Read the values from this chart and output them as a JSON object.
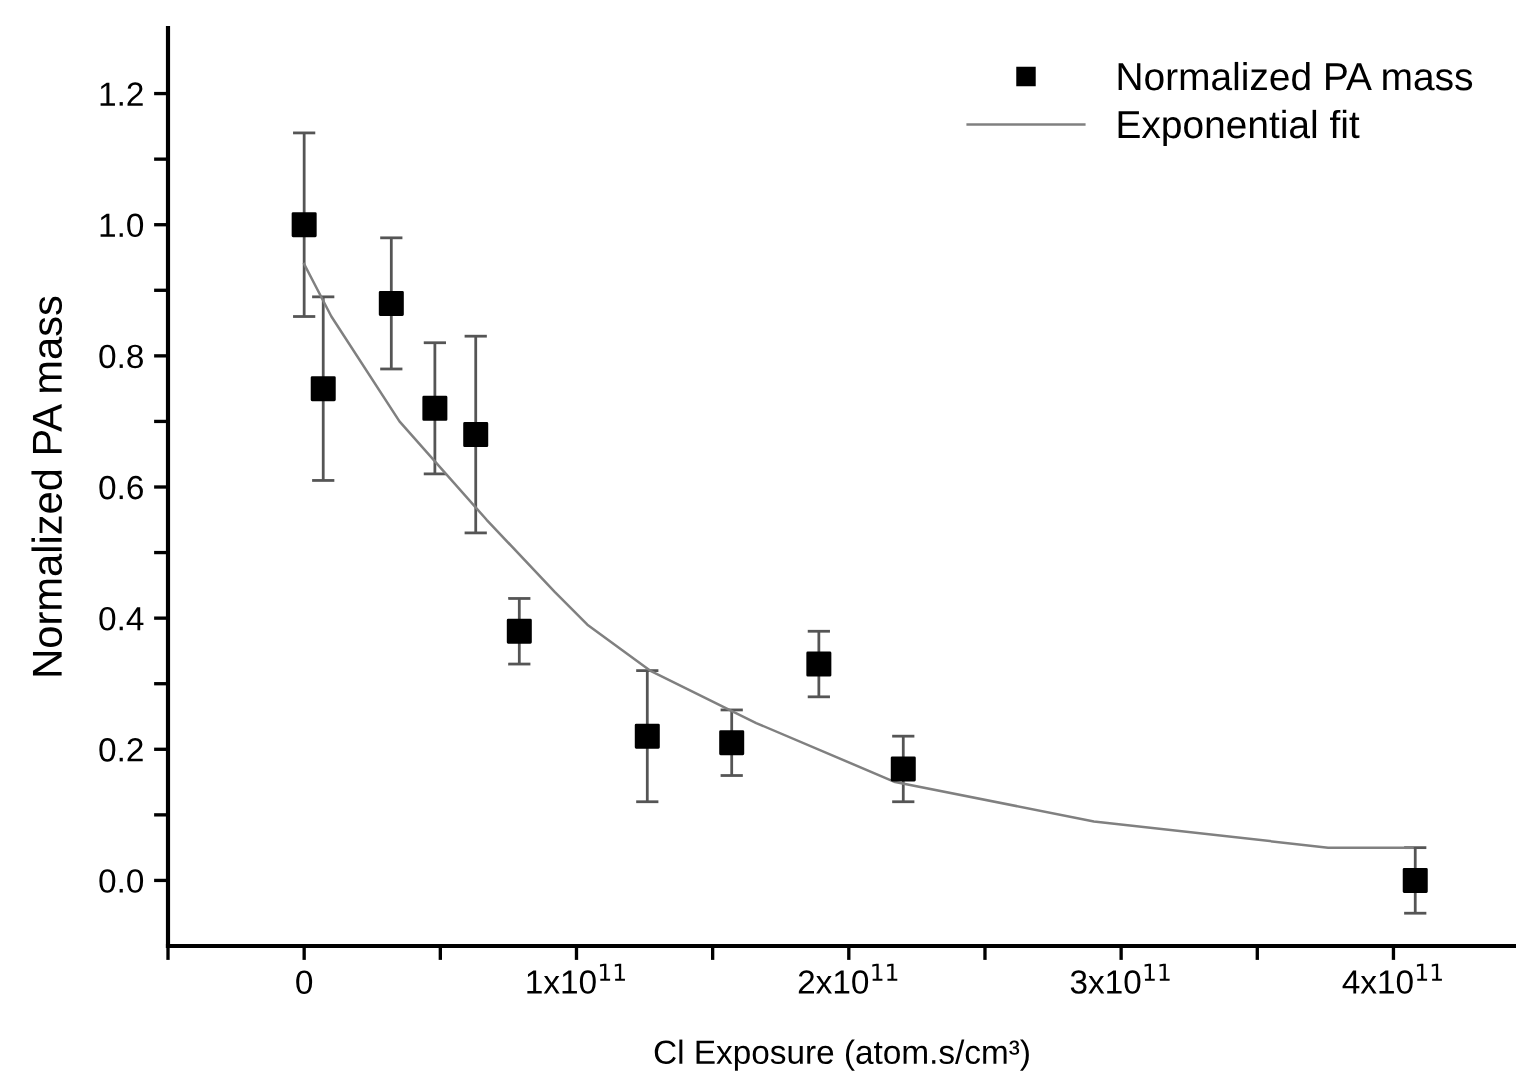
{
  "chart_data": {
    "type": "scatter",
    "xlabel": "Cl Exposure (atom.s/cm³)",
    "ylabel": "Normalized PA mass",
    "xlim": [
      -50000000000.0,
      445000000000.0
    ],
    "ylim": [
      -0.1,
      1.3
    ],
    "xticks": [
      {
        "value": -50000000000.0,
        "label": null
      },
      0,
      {
        "value": 50000000000.0,
        "label": null
      },
      {
        "value": 100000000000.0,
        "label": "1x10$^{11}$"
      },
      {
        "value": 150000000000.0,
        "label": null
      },
      {
        "value": 200000000000.0,
        "label": "2x10$^{11}$"
      },
      {
        "value": 250000000000.0,
        "label": null
      },
      {
        "value": 300000000000.0,
        "label": "3x10$^{11}$"
      },
      {
        "value": 350000000000.0,
        "label": null
      },
      {
        "value": 400000000000.0,
        "label": "4x10$^{11}$"
      }
    ],
    "yticks": [
      {
        "value": 0,
        "label": "0.0"
      },
      {
        "value": 0.1,
        "label": null
      },
      0.2,
      {
        "value": 0.3,
        "label": null
      },
      0.4,
      {
        "value": 0.5,
        "label": null
      },
      0.6,
      {
        "value": 0.7,
        "label": null
      },
      0.8,
      {
        "value": 0.9,
        "label": null
      },
      {
        "value": 1,
        "label": "1.0"
      },
      {
        "value": 1.1,
        "label": null
      },
      1.2
    ],
    "grid": false,
    "legend": "top right",
    "series": [
      {
        "name": "Normalized PA mass",
        "color": "#000000",
        "marker": "square",
        "x": [
          0,
          7000000000.0,
          32000000000.0,
          48000000000.0,
          63000000000.0,
          79000000000.0,
          126000000000.0,
          157000000000.0,
          189000000000.0,
          220000000000.0,
          408000000000.0
        ],
        "values": [
          1.0,
          0.75,
          0.88,
          0.72,
          0.68,
          0.38,
          0.22,
          0.21,
          0.33,
          0.17,
          0.0
        ],
        "errors": [
          0.14,
          0.14,
          0.1,
          0.1,
          0.15,
          0.05,
          0.1,
          0.05,
          0.05,
          0.05,
          0.05
        ]
      },
      {
        "name": "Exponential fit",
        "type": "line",
        "color": "#808080",
        "marker": "none",
        "line_style": "solid",
        "x": [
          0,
          10000000000.0,
          35000000000.0,
          67000000000.0,
          92000000000.0,
          104000000000.0,
          127000000000.0,
          166000000000.0,
          217000000000.0,
          290000000000.0,
          376000000000.0,
          407000000000.0
        ],
        "values": [
          0.94,
          0.86,
          0.7,
          0.55,
          0.44,
          0.39,
          0.32,
          0.24,
          0.15,
          0.09,
          0.05,
          0.05
        ]
      }
    ]
  }
}
